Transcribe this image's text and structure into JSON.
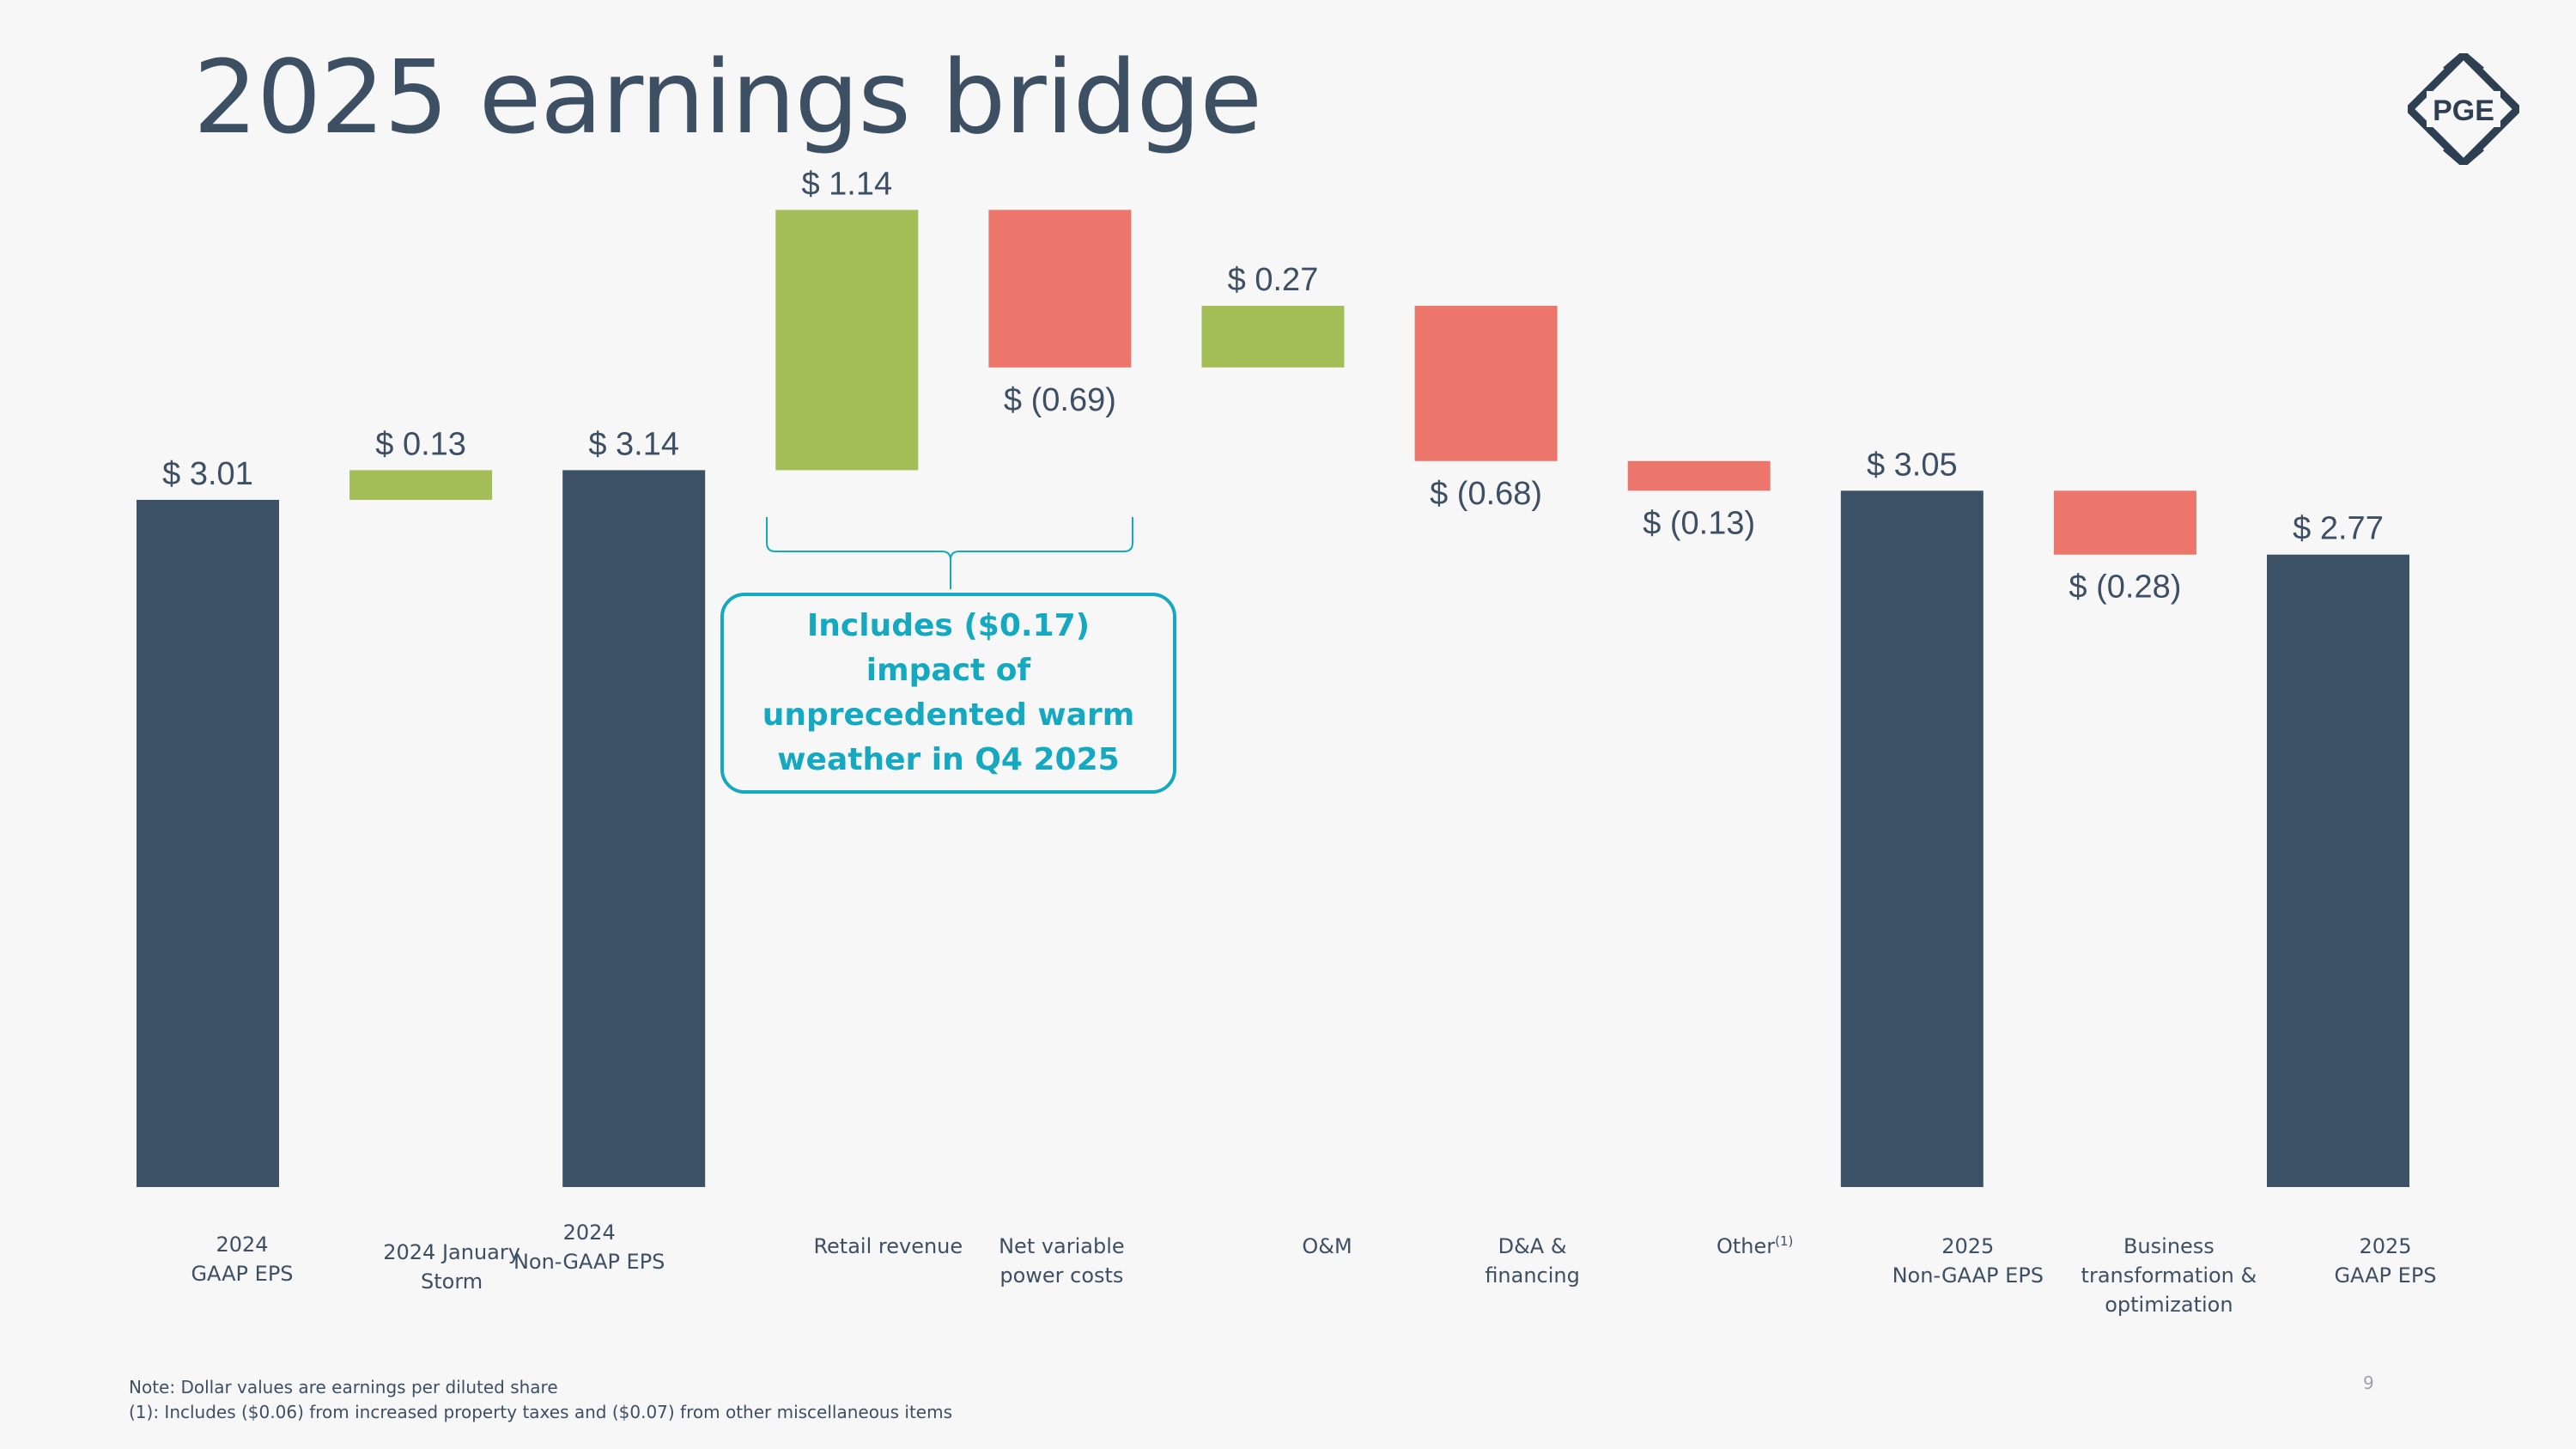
{
  "title": "2025 earnings bridge",
  "logo_text": "PGE",
  "colors": {
    "total": "#3d5166",
    "increase": "#a3be57",
    "decrease": "#ec766b",
    "text": "#3d4f63",
    "callout": "#15a9c1"
  },
  "chart_data": {
    "type": "bar",
    "subtype": "waterfall",
    "categories": [
      "2024 GAAP EPS",
      "2024 January Storm",
      "2024 Non-GAAP EPS",
      "Retail revenue",
      "Net variable power costs",
      "O&M",
      "D&A & financing",
      "Other(1)",
      "2025 Non-GAAP EPS",
      "Business transformation & optimization",
      "2025 GAAP EPS"
    ],
    "kinds": [
      "total",
      "delta",
      "total",
      "delta",
      "delta",
      "delta",
      "delta",
      "delta",
      "total",
      "delta",
      "total"
    ],
    "values": [
      3.01,
      0.13,
      3.14,
      1.14,
      -0.69,
      0.27,
      -0.68,
      -0.13,
      3.05,
      -0.28,
      2.77
    ],
    "value_labels": [
      "$ 3.01",
      "$ 0.13",
      "$ 3.14",
      "$ 1.14",
      "$ (0.69)",
      "$ 0.27",
      "$ (0.68)",
      "$ (0.13)",
      "$ 3.05",
      "$ (0.28)",
      "$ 2.77"
    ],
    "ylim": [
      0,
      4.45
    ],
    "grid": false,
    "unit": "$ per diluted share"
  },
  "category_labels": [
    {
      "lines": [
        "2024",
        "GAAP EPS"
      ]
    },
    {
      "lines": [
        "2024 January",
        "Storm"
      ]
    },
    {
      "lines": [
        "2024",
        "Non-GAAP EPS"
      ]
    },
    {
      "lines": [
        "Retail revenue"
      ]
    },
    {
      "lines": [
        "Net variable",
        "power costs"
      ]
    },
    {
      "lines": [
        "O&M"
      ]
    },
    {
      "lines": [
        "D&A &",
        "financing"
      ]
    },
    {
      "lines": [
        "Other"
      ],
      "sup": "(1)"
    },
    {
      "lines": [
        "2025",
        "Non-GAAP EPS"
      ]
    },
    {
      "lines": [
        "Business",
        "transformation &",
        "optimization"
      ]
    },
    {
      "lines": [
        "2025",
        "GAAP EPS"
      ]
    }
  ],
  "callout": {
    "text": "Includes ($0.17) impact of unprecedented warm weather in Q4 2025"
  },
  "notes": {
    "line1": "Note: Dollar values are earnings per diluted share",
    "line2": "(1): Includes ($0.06) from increased property taxes and ($0.07) from other miscellaneous items"
  },
  "page_number": "9"
}
